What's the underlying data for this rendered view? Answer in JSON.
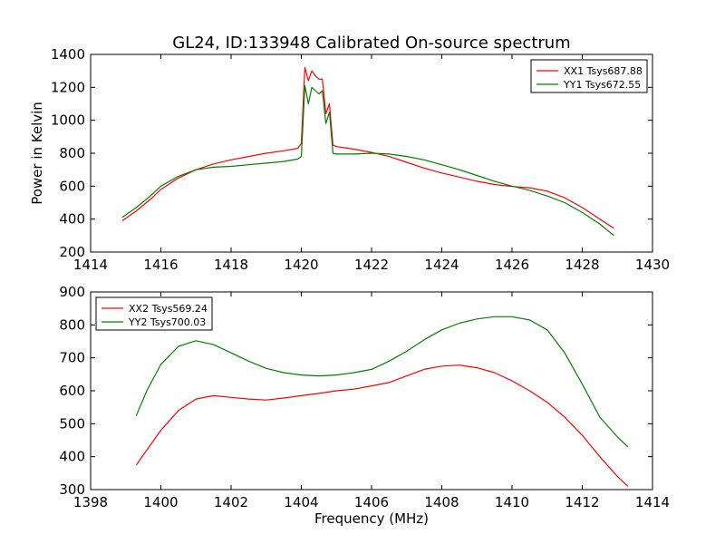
{
  "chart_data": [
    {
      "type": "line",
      "title": "GL24, ID:133948 Calibrated On-source spectrum",
      "xlabel": "",
      "ylabel": "Power in Kelvin",
      "xlim": [
        1414,
        1430
      ],
      "ylim": [
        200,
        1400
      ],
      "xticks": [
        "1414",
        "1416",
        "1418",
        "1420",
        "1422",
        "1424",
        "1426",
        "1428",
        "1430"
      ],
      "yticks": [
        "200",
        "400",
        "600",
        "800",
        "1000",
        "1200",
        "1400"
      ],
      "legend_position": "top-right",
      "series": [
        {
          "name": "XX1 Tsys687.88",
          "color": "#ff0000",
          "x": [
            1414.9,
            1415.3,
            1415.7,
            1416.0,
            1416.5,
            1417.0,
            1417.5,
            1418.0,
            1418.5,
            1419.0,
            1419.5,
            1419.9,
            1420.0,
            1420.1,
            1420.2,
            1420.3,
            1420.4,
            1420.5,
            1420.6,
            1420.7,
            1420.8,
            1420.9,
            1421.0,
            1421.5,
            1422.0,
            1422.5,
            1423.0,
            1423.5,
            1424.0,
            1424.5,
            1425.0,
            1425.5,
            1426.0,
            1426.5,
            1427.0,
            1427.5,
            1428.0,
            1428.5,
            1428.9
          ],
          "y": [
            390,
            450,
            520,
            580,
            650,
            700,
            735,
            760,
            780,
            800,
            815,
            830,
            860,
            1320,
            1240,
            1300,
            1270,
            1250,
            1250,
            1040,
            1100,
            850,
            840,
            825,
            805,
            780,
            745,
            710,
            680,
            655,
            630,
            610,
            598,
            590,
            570,
            530,
            470,
            400,
            345
          ]
        },
        {
          "name": "YY1 Tsys672.55",
          "color": "#008000",
          "x": [
            1414.9,
            1415.3,
            1415.7,
            1416.0,
            1416.5,
            1417.0,
            1417.5,
            1418.0,
            1418.5,
            1419.0,
            1419.5,
            1419.9,
            1420.0,
            1420.1,
            1420.2,
            1420.3,
            1420.4,
            1420.5,
            1420.6,
            1420.7,
            1420.8,
            1420.9,
            1421.0,
            1421.5,
            1422.0,
            1422.5,
            1423.0,
            1423.5,
            1424.0,
            1424.5,
            1425.0,
            1425.5,
            1426.0,
            1426.5,
            1427.0,
            1427.5,
            1428.0,
            1428.5,
            1428.9
          ],
          "y": [
            410,
            470,
            540,
            600,
            660,
            700,
            715,
            720,
            730,
            740,
            750,
            765,
            780,
            1210,
            1100,
            1200,
            1180,
            1160,
            1180,
            980,
            1050,
            800,
            795,
            795,
            800,
            795,
            780,
            760,
            730,
            700,
            665,
            630,
            600,
            575,
            540,
            500,
            440,
            370,
            300
          ]
        }
      ]
    },
    {
      "type": "line",
      "title": "",
      "xlabel": "Frequency (MHz)",
      "ylabel": "",
      "xlim": [
        1398,
        1414
      ],
      "ylim": [
        300,
        900
      ],
      "xticks": [
        "1398",
        "1400",
        "1402",
        "1404",
        "1406",
        "1408",
        "1410",
        "1412",
        "1414"
      ],
      "yticks": [
        "300",
        "400",
        "500",
        "600",
        "700",
        "800",
        "900"
      ],
      "legend_position": "top-left",
      "series": [
        {
          "name": "XX2 Tsys569.24",
          "color": "#ff0000",
          "x": [
            1399.3,
            1399.6,
            1400.0,
            1400.5,
            1401.0,
            1401.5,
            1402.0,
            1402.5,
            1403.0,
            1403.5,
            1404.0,
            1404.5,
            1405.0,
            1405.5,
            1406.0,
            1406.5,
            1407.0,
            1407.5,
            1408.0,
            1408.5,
            1409.0,
            1409.5,
            1410.0,
            1410.5,
            1411.0,
            1411.5,
            1412.0,
            1412.5,
            1413.0,
            1413.3
          ],
          "y": [
            375,
            420,
            480,
            540,
            575,
            585,
            580,
            575,
            572,
            578,
            585,
            592,
            600,
            605,
            615,
            625,
            645,
            665,
            675,
            678,
            670,
            655,
            630,
            600,
            565,
            520,
            465,
            400,
            340,
            310
          ]
        },
        {
          "name": "YY2 Tsys700.03",
          "color": "#008000",
          "x": [
            1399.3,
            1399.6,
            1400.0,
            1400.5,
            1401.0,
            1401.5,
            1402.0,
            1402.5,
            1403.0,
            1403.5,
            1404.0,
            1404.5,
            1405.0,
            1405.5,
            1406.0,
            1406.5,
            1407.0,
            1407.5,
            1408.0,
            1408.5,
            1409.0,
            1409.5,
            1410.0,
            1410.5,
            1411.0,
            1411.5,
            1412.0,
            1412.5,
            1413.0,
            1413.3
          ],
          "y": [
            525,
            600,
            680,
            735,
            752,
            740,
            715,
            690,
            668,
            655,
            648,
            645,
            648,
            655,
            665,
            690,
            720,
            755,
            785,
            805,
            818,
            825,
            825,
            815,
            785,
            715,
            620,
            520,
            460,
            430
          ]
        }
      ]
    }
  ]
}
